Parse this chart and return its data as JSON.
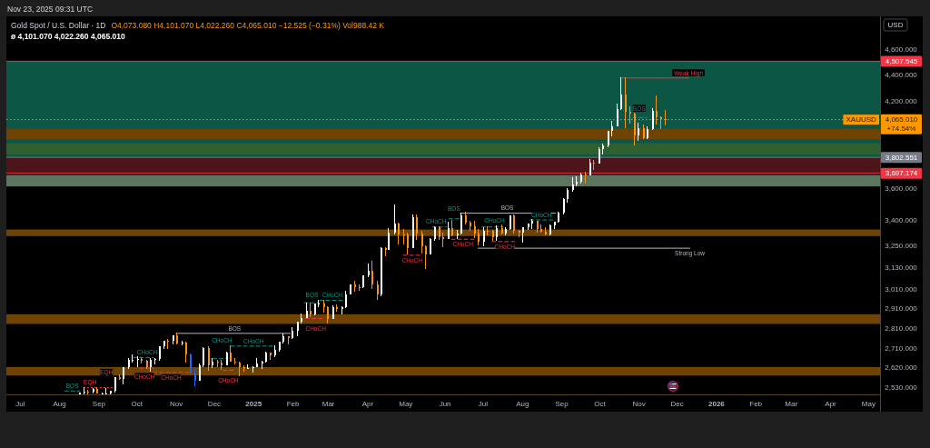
{
  "chart_data": {
    "type": "candlestick",
    "title": "Gold Spot / U.S. Dollar · 1D",
    "subtitle": "O4,073.080 H4,101.070 L4,022.260 C4,065.010 −12.525 (−0.31%) Vol988.42 K",
    "ylabel": "USD",
    "log": true,
    "xlim": [
      "2024-06-20",
      "2026-05-10"
    ],
    "ylim": [
      2500,
      4880
    ],
    "xticks": [
      {
        "value": "2024-07-01",
        "label": "Jul"
      },
      {
        "value": "2024-08-01",
        "label": "Aug"
      },
      {
        "value": "2024-09-01",
        "label": "Sep"
      },
      {
        "value": "2024-10-01",
        "label": "Oct"
      },
      {
        "value": "2024-11-01",
        "label": "Nov"
      },
      {
        "value": "2024-12-01",
        "label": "Dec"
      },
      {
        "value": "2025-01-01",
        "label": "2025"
      },
      {
        "value": "2025-02-01",
        "label": "Feb"
      },
      {
        "value": "2025-03-01",
        "label": "Mar"
      },
      {
        "value": "2025-04-01",
        "label": "Apr"
      },
      {
        "value": "2025-05-01",
        "label": "May"
      },
      {
        "value": "2025-06-01",
        "label": "Jun"
      },
      {
        "value": "2025-07-01",
        "label": "Jul"
      },
      {
        "value": "2025-08-01",
        "label": "Aug"
      },
      {
        "value": "2025-09-01",
        "label": "Sep"
      },
      {
        "value": "2025-10-01",
        "label": "Oct"
      },
      {
        "value": "2025-11-01",
        "label": "Nov"
      },
      {
        "value": "2025-12-01",
        "label": "Dec"
      },
      {
        "value": "2026-01-01",
        "label": "2026"
      },
      {
        "value": "2026-02-01",
        "label": "Feb"
      },
      {
        "value": "2026-03-01",
        "label": "Mar"
      },
      {
        "value": "2026-04-01",
        "label": "Apr"
      },
      {
        "value": "2026-05-01",
        "label": "May"
      }
    ],
    "yticks": [
      {
        "value": 4600,
        "label": "4,600.000"
      },
      {
        "value": 4400,
        "label": "4,400.000"
      },
      {
        "value": 4200,
        "label": "4,200.000"
      },
      {
        "value": 3600,
        "label": "3,600.000"
      },
      {
        "value": 3400,
        "label": "3,400.000"
      },
      {
        "value": 3250,
        "label": "3,250.000"
      },
      {
        "value": 3130,
        "label": "3,130.000"
      },
      {
        "value": 3010,
        "label": "3,010.000"
      },
      {
        "value": 2910,
        "label": "2,910.000"
      },
      {
        "value": 2810,
        "label": "2,810.000"
      },
      {
        "value": 2710,
        "label": "2,710.000"
      },
      {
        "value": 2620,
        "label": "2,620.000"
      },
      {
        "value": 2530,
        "label": "2,530.000"
      }
    ],
    "x": [
      "2024-08-16",
      "2024-08-20",
      "2024-08-23",
      "2024-08-27",
      "2024-08-30",
      "2024-09-03",
      "2024-09-06",
      "2024-09-10",
      "2024-09-13",
      "2024-09-17",
      "2024-09-20",
      "2024-09-24",
      "2024-09-27",
      "2024-10-01",
      "2024-10-04",
      "2024-10-08",
      "2024-10-11",
      "2024-10-15",
      "2024-10-18",
      "2024-10-22",
      "2024-10-25",
      "2024-10-29",
      "2024-11-01",
      "2024-11-05",
      "2024-11-08",
      "2024-11-12",
      "2024-11-15",
      "2024-11-19",
      "2024-11-22",
      "2024-11-26",
      "2024-11-29",
      "2024-12-03",
      "2024-12-06",
      "2024-12-10",
      "2024-12-13",
      "2024-12-17",
      "2024-12-20",
      "2024-12-24",
      "2024-12-27",
      "2024-12-31",
      "2025-01-03",
      "2025-01-07",
      "2025-01-10",
      "2025-01-14",
      "2025-01-17",
      "2025-01-21",
      "2025-01-24",
      "2025-01-28",
      "2025-01-31",
      "2025-02-04",
      "2025-02-07",
      "2025-02-11",
      "2025-02-14",
      "2025-02-18",
      "2025-02-21",
      "2025-02-25",
      "2025-02-28",
      "2025-03-04",
      "2025-03-07",
      "2025-03-11",
      "2025-03-14",
      "2025-03-18",
      "2025-03-21",
      "2025-03-25",
      "2025-03-28",
      "2025-04-01",
      "2025-04-04",
      "2025-04-08",
      "2025-04-11",
      "2025-04-15",
      "2025-04-17",
      "2025-04-22",
      "2025-04-25",
      "2025-04-29",
      "2025-05-02",
      "2025-05-06",
      "2025-05-09",
      "2025-05-13",
      "2025-05-16",
      "2025-05-20",
      "2025-05-23",
      "2025-05-27",
      "2025-05-30",
      "2025-06-03",
      "2025-06-06",
      "2025-06-10",
      "2025-06-13",
      "2025-06-17",
      "2025-06-20",
      "2025-06-24",
      "2025-06-27",
      "2025-07-01",
      "2025-07-04",
      "2025-07-08",
      "2025-07-11",
      "2025-07-15",
      "2025-07-18",
      "2025-07-22",
      "2025-07-25",
      "2025-07-29",
      "2025-08-01",
      "2025-08-05",
      "2025-08-08",
      "2025-08-12",
      "2025-08-15",
      "2025-08-19",
      "2025-08-22",
      "2025-08-26",
      "2025-08-29",
      "2025-09-02",
      "2025-09-05",
      "2025-09-09",
      "2025-09-12",
      "2025-09-16",
      "2025-09-19",
      "2025-09-23",
      "2025-09-26",
      "2025-09-30",
      "2025-10-03",
      "2025-10-07",
      "2025-10-10",
      "2025-10-14",
      "2025-10-17",
      "2025-10-21",
      "2025-10-24",
      "2025-10-28",
      "2025-10-31",
      "2025-11-04",
      "2025-11-07",
      "2025-11-11",
      "2025-11-14",
      "2025-11-18",
      "2025-11-21"
    ],
    "ohlc": [
      [
        2502,
        2509,
        2501,
        2507
      ],
      [
        2507,
        2531,
        2501,
        2513
      ],
      [
        2513,
        2520,
        2502,
        2512
      ],
      [
        2512,
        2528,
        2506,
        2525
      ],
      [
        2525,
        2531,
        2503,
        2503
      ],
      [
        2503,
        2508,
        2501,
        2505
      ],
      [
        2505,
        2529,
        2501,
        2506
      ],
      [
        2506,
        2518,
        2501,
        2516
      ],
      [
        2516,
        2578,
        2510,
        2578
      ],
      [
        2578,
        2590,
        2564,
        2570
      ],
      [
        2570,
        2625,
        2546,
        2622
      ],
      [
        2622,
        2664,
        2614,
        2657
      ],
      [
        2657,
        2685,
        2643,
        2658
      ],
      [
        2658,
        2673,
        2624,
        2662
      ],
      [
        2662,
        2670,
        2640,
        2654
      ],
      [
        2654,
        2658,
        2615,
        2622
      ],
      [
        2622,
        2664,
        2603,
        2657
      ],
      [
        2657,
        2666,
        2638,
        2662
      ],
      [
        2662,
        2722,
        2652,
        2721
      ],
      [
        2721,
        2749,
        2708,
        2748
      ],
      [
        2748,
        2758,
        2708,
        2747
      ],
      [
        2747,
        2774,
        2732,
        2774
      ],
      [
        2774,
        2790,
        2731,
        2736
      ],
      [
        2736,
        2750,
        2726,
        2742
      ],
      [
        2742,
        2746,
        2643,
        2685
      ],
      [
        2685,
        2686,
        2589,
        2598
      ],
      [
        2598,
        2615,
        2537,
        2563
      ],
      [
        2563,
        2639,
        2563,
        2631
      ],
      [
        2631,
        2716,
        2625,
        2712
      ],
      [
        2712,
        2721,
        2605,
        2633
      ],
      [
        2633,
        2665,
        2620,
        2650
      ],
      [
        2650,
        2657,
        2622,
        2643
      ],
      [
        2643,
        2657,
        2613,
        2633
      ],
      [
        2633,
        2695,
        2632,
        2694
      ],
      [
        2694,
        2726,
        2648,
        2648
      ],
      [
        2648,
        2664,
        2637,
        2646
      ],
      [
        2646,
        2650,
        2583,
        2622
      ],
      [
        2622,
        2630,
        2604,
        2618
      ],
      [
        2618,
        2638,
        2616,
        2621
      ],
      [
        2621,
        2626,
        2597,
        2624
      ],
      [
        2624,
        2665,
        2624,
        2640
      ],
      [
        2640,
        2655,
        2614,
        2649
      ],
      [
        2649,
        2697,
        2645,
        2690
      ],
      [
        2690,
        2693,
        2656,
        2677
      ],
      [
        2677,
        2725,
        2670,
        2703
      ],
      [
        2703,
        2746,
        2698,
        2744
      ],
      [
        2744,
        2786,
        2736,
        2770
      ],
      [
        2770,
        2772,
        2730,
        2763
      ],
      [
        2763,
        2817,
        2757,
        2798
      ],
      [
        2798,
        2845,
        2770,
        2842
      ],
      [
        2842,
        2886,
        2834,
        2861
      ],
      [
        2861,
        2942,
        2860,
        2897
      ],
      [
        2897,
        2942,
        2864,
        2882
      ],
      [
        2882,
        2936,
        2877,
        2935
      ],
      [
        2935,
        2955,
        2919,
        2936
      ],
      [
        2936,
        2956,
        2890,
        2915
      ],
      [
        2915,
        2922,
        2832,
        2858
      ],
      [
        2858,
        2928,
        2858,
        2918
      ],
      [
        2918,
        2930,
        2894,
        2910
      ],
      [
        2910,
        2922,
        2880,
        2917
      ],
      [
        2917,
        3005,
        2914,
        2984
      ],
      [
        2984,
        3038,
        2982,
        3035
      ],
      [
        3035,
        3057,
        2999,
        3022
      ],
      [
        3022,
        3036,
        3002,
        3020
      ],
      [
        3020,
        3087,
        3018,
        3085
      ],
      [
        3085,
        3149,
        3076,
        3112
      ],
      [
        3112,
        3167,
        3015,
        3037
      ],
      [
        3037,
        3055,
        2957,
        2982
      ],
      [
        2982,
        3245,
        2975,
        3237
      ],
      [
        3237,
        3245,
        3193,
        3230
      ],
      [
        3230,
        3357,
        3226,
        3327
      ],
      [
        3327,
        3500,
        3317,
        3381
      ],
      [
        3381,
        3387,
        3261,
        3319
      ],
      [
        3319,
        3352,
        3261,
        3317
      ],
      [
        3317,
        3326,
        3202,
        3240
      ],
      [
        3240,
        3437,
        3239,
        3421
      ],
      [
        3421,
        3435,
        3288,
        3325
      ],
      [
        3325,
        3337,
        3208,
        3248
      ],
      [
        3248,
        3252,
        3121,
        3203
      ],
      [
        3203,
        3296,
        3203,
        3289
      ],
      [
        3289,
        3366,
        3282,
        3358
      ],
      [
        3358,
        3365,
        3286,
        3300
      ],
      [
        3300,
        3330,
        3245,
        3289
      ],
      [
        3289,
        3392,
        3289,
        3353
      ],
      [
        3353,
        3403,
        3307,
        3310
      ],
      [
        3310,
        3345,
        3293,
        3323
      ],
      [
        3323,
        3446,
        3319,
        3433
      ],
      [
        3433,
        3452,
        3377,
        3388
      ],
      [
        3388,
        3399,
        3340,
        3368
      ],
      [
        3368,
        3398,
        3295,
        3323
      ],
      [
        3323,
        3350,
        3255,
        3274
      ],
      [
        3274,
        3358,
        3247,
        3338
      ],
      [
        3338,
        3366,
        3311,
        3337
      ],
      [
        3337,
        3342,
        3283,
        3302
      ],
      [
        3302,
        3369,
        3283,
        3355
      ],
      [
        3355,
        3375,
        3320,
        3324
      ],
      [
        3324,
        3361,
        3310,
        3350
      ],
      [
        3350,
        3433,
        3344,
        3431
      ],
      [
        3431,
        3439,
        3325,
        3337
      ],
      [
        3337,
        3345,
        3301,
        3326
      ],
      [
        3326,
        3363,
        3268,
        3362
      ],
      [
        3362,
        3385,
        3346,
        3380
      ],
      [
        3380,
        3409,
        3351,
        3397
      ],
      [
        3397,
        3400,
        3331,
        3348
      ],
      [
        3348,
        3375,
        3330,
        3336
      ],
      [
        3336,
        3358,
        3315,
        3316
      ],
      [
        3316,
        3379,
        3311,
        3371
      ],
      [
        3371,
        3393,
        3352,
        3393
      ],
      [
        3393,
        3453,
        3386,
        3448
      ],
      [
        3448,
        3540,
        3436,
        3533
      ],
      [
        3533,
        3600,
        3511,
        3587
      ],
      [
        3587,
        3674,
        3578,
        3626
      ],
      [
        3626,
        3675,
        3614,
        3643
      ],
      [
        3643,
        3703,
        3631,
        3690
      ],
      [
        3690,
        3707,
        3628,
        3685
      ],
      [
        3685,
        3791,
        3683,
        3764
      ],
      [
        3764,
        3784,
        3717,
        3760
      ],
      [
        3760,
        3872,
        3758,
        3858
      ],
      [
        3858,
        3897,
        3819,
        3886
      ],
      [
        3886,
        3986,
        3874,
        3985
      ],
      [
        3985,
        4059,
        3945,
        4018
      ],
      [
        4018,
        4179,
        4015,
        4142
      ],
      [
        4142,
        4380,
        4138,
        4251
      ],
      [
        4251,
        4381,
        4004,
        4125
      ],
      [
        4125,
        4162,
        4034,
        4112
      ],
      [
        4112,
        4113,
        3886,
        3952
      ],
      [
        3952,
        4046,
        3916,
        4002
      ],
      [
        4002,
        4030,
        3929,
        3932
      ],
      [
        3932,
        4020,
        3930,
        4000
      ],
      [
        4000,
        4149,
        3994,
        4128
      ],
      [
        4128,
        4245,
        4032,
        4084
      ],
      [
        4084,
        4091,
        3998,
        4067
      ],
      [
        4067,
        4132,
        4022,
        4065
      ]
    ],
    "colors": [
      "#ffffff",
      "#ffffff",
      "#f7931a",
      "#ffffff",
      "#f7931a",
      "#ffffff",
      "#ffffff",
      "#ffffff",
      "#ffffff",
      "#f7931a",
      "#ffffff",
      "#ffffff",
      "#ffffff",
      "#ffffff",
      "#f7931a",
      "#f7931a",
      "#ffffff",
      "#ffffff",
      "#ffffff",
      "#ffffff",
      "#f7931a",
      "#ffffff",
      "#f7931a",
      "#ffffff",
      "#f7931a",
      "#2962ff",
      "#2962ff",
      "#ffffff",
      "#ffffff",
      "#f7931a",
      "#ffffff",
      "#f7931a",
      "#f7931a",
      "#ffffff",
      "#f7931a",
      "#f7931a",
      "#f7931a",
      "#f7931a",
      "#ffffff",
      "#ffffff",
      "#ffffff",
      "#ffffff",
      "#ffffff",
      "#f7931a",
      "#ffffff",
      "#ffffff",
      "#ffffff",
      "#f7931a",
      "#ffffff",
      "#ffffff",
      "#ffffff",
      "#ffffff",
      "#f7931a",
      "#ffffff",
      "#ffffff",
      "#f7931a",
      "#f7931a",
      "#ffffff",
      "#f7931a",
      "#ffffff",
      "#ffffff",
      "#ffffff",
      "#f7931a",
      "#f7931a",
      "#ffffff",
      "#ffffff",
      "#f7931a",
      "#f7931a",
      "#ffffff",
      "#f7931a",
      "#ffffff",
      "#ffffff",
      "#f7931a",
      "#f7931a",
      "#f7931a",
      "#ffffff",
      "#f7931a",
      "#f7931a",
      "#f7931a",
      "#ffffff",
      "#ffffff",
      "#f7931a",
      "#f7931a",
      "#ffffff",
      "#f7931a",
      "#ffffff",
      "#ffffff",
      "#f7931a",
      "#f7931a",
      "#f7931a",
      "#f7931a",
      "#ffffff",
      "#f7931a",
      "#f7931a",
      "#ffffff",
      "#f7931a",
      "#ffffff",
      "#ffffff",
      "#f7931a",
      "#f7931a",
      "#ffffff",
      "#ffffff",
      "#ffffff",
      "#f7931a",
      "#f7931a",
      "#f7931a",
      "#ffffff",
      "#ffffff",
      "#ffffff",
      "#ffffff",
      "#ffffff",
      "#ffffff",
      "#ffffff",
      "#ffffff",
      "#f7931a",
      "#ffffff",
      "#f7931a",
      "#ffffff",
      "#ffffff",
      "#ffffff",
      "#ffffff",
      "#ffffff",
      "#ffffff",
      "#f7931a",
      "#f7931a",
      "#f7931a",
      "#ffffff",
      "#f7931a",
      "#ffffff",
      "#ffffff",
      "#f7931a",
      "#f7931a",
      "#f7931a"
    ],
    "series": [
      {
        "type": "line",
        "x": [
          "2024-11-01",
          "2025-01-30"
        ],
        "values": [
          2785,
          2785
        ],
        "color": "#b2b5be"
      },
      {
        "type": "line",
        "x": [
          "2024-09-28",
          "2024-10-14"
        ],
        "values": [
          2669,
          2669
        ],
        "color": "#089981",
        "line_style": "dashed"
      },
      {
        "type": "line",
        "x": [
          "2024-10-03",
          "2024-10-14"
        ],
        "values": [
          2619,
          2619
        ],
        "color": "#f23645",
        "line_style": "dashed"
      },
      {
        "type": "line",
        "x": [
          "2024-10-14",
          "2024-11-12"
        ],
        "values": [
          2599,
          2599
        ],
        "color": "#f23645",
        "line_style": "dashed"
      },
      {
        "type": "line",
        "x": [
          "2024-11-30",
          "2024-12-11"
        ],
        "values": [
          2663,
          2663
        ],
        "color": "#089981",
        "line_style": "dashed"
      },
      {
        "type": "line",
        "x": [
          "2024-12-14",
          "2025-01-18"
        ],
        "values": [
          2723,
          2723
        ],
        "color": "#089981",
        "line_style": "dashed"
      },
      {
        "type": "line",
        "x": [
          "2024-12-08",
          "2024-12-17"
        ],
        "values": [
          2609,
          2609
        ],
        "color": "#f23645",
        "line_style": "dashed"
      },
      {
        "type": "line",
        "x": [
          "2024-08-20",
          "2024-08-30"
        ],
        "values": [
          2530,
          2530
        ],
        "color": "#f23645",
        "line_style": "dotted"
      },
      {
        "type": "line",
        "x": [
          "2024-09-02",
          "2024-09-12"
        ],
        "values": [
          2530,
          2530
        ],
        "color": "#f23645",
        "line_style": "dotted"
      },
      {
        "type": "line",
        "x": [
          "2024-08-05",
          "2024-08-17"
        ],
        "values": [
          2515,
          2515
        ],
        "color": "#089981",
        "line_style": "dashed"
      },
      {
        "type": "line",
        "x": [
          "2025-02-10",
          "2025-02-22"
        ],
        "values": [
          2940,
          2940
        ],
        "color": "#089981",
        "line_style": "dashed"
      },
      {
        "type": "line",
        "x": [
          "2025-02-22",
          "2025-03-12"
        ],
        "values": [
          2953,
          2953
        ],
        "color": "#089981",
        "line_style": "dashed"
      },
      {
        "type": "line",
        "x": [
          "2025-02-11",
          "2025-02-26"
        ],
        "values": [
          2859,
          2859
        ],
        "color": "#f23645",
        "line_style": "dashed"
      },
      {
        "type": "line",
        "x": [
          "2025-06-13",
          "2025-08-27"
        ],
        "values": [
          3445,
          3445
        ],
        "color": "#b2b5be"
      },
      {
        "type": "line",
        "x": [
          "2025-06-04",
          "2025-06-13"
        ],
        "values": [
          3411,
          3411
        ],
        "color": "#089981",
        "line_style": "dashed"
      },
      {
        "type": "line",
        "x": [
          "2025-05-22",
          "2025-06-02"
        ],
        "values": [
          3362,
          3362
        ],
        "color": "#089981",
        "line_style": "dashed"
      },
      {
        "type": "line",
        "x": [
          "2025-06-30",
          "2025-07-17"
        ],
        "values": [
          3362,
          3362
        ],
        "color": "#089981",
        "line_style": "dashed"
      },
      {
        "type": "line",
        "x": [
          "2025-08-07",
          "2025-08-25"
        ],
        "values": [
          3404,
          3404
        ],
        "color": "#089981",
        "line_style": "dashed"
      },
      {
        "type": "line",
        "x": [
          "2025-04-29",
          "2025-05-12"
        ],
        "values": [
          3198,
          3198
        ],
        "color": "#f23645",
        "line_style": "dashed"
      },
      {
        "type": "line",
        "x": [
          "2025-06-06",
          "2025-06-24"
        ],
        "values": [
          3290,
          3290
        ],
        "color": "#f23645",
        "line_style": "dashed"
      },
      {
        "type": "line",
        "x": [
          "2025-07-08",
          "2025-07-28"
        ],
        "values": [
          3276,
          3276
        ],
        "color": "#f23645",
        "line_style": "dashed"
      },
      {
        "type": "line",
        "x": [
          "2025-06-27",
          "2025-12-11"
        ],
        "values": [
          3238,
          3238
        ],
        "color": "#b2b5be"
      },
      {
        "type": "line",
        "x": [
          "2025-10-27",
          "2025-11-07"
        ],
        "values": [
          4080,
          4080
        ],
        "color": "#089981",
        "line_style": "dashed"
      },
      {
        "type": "line",
        "x": [
          "2025-10-18",
          "2025-12-10"
        ],
        "values": [
          4376,
          4376
        ],
        "color": "#f23645"
      }
    ],
    "bands": [
      {
        "axis": "y",
        "from": 3802.551,
        "to": 4507.545,
        "color": "#0c5646"
      },
      {
        "axis": "y",
        "from": 3697.174,
        "to": 3802.551,
        "color": "#4d1519"
      },
      {
        "axis": "y",
        "from": 3925,
        "to": 4000,
        "color": "#6f4303"
      },
      {
        "axis": "y",
        "from": 3820,
        "to": 3900,
        "color": "#2d5f2f"
      },
      {
        "axis": "y",
        "from": 3612,
        "to": 3686,
        "color": "#5d7460"
      },
      {
        "axis": "y",
        "from": 3308,
        "to": 3347,
        "color": "#6f4303"
      },
      {
        "axis": "y",
        "from": 2832,
        "to": 2881,
        "color": "#6f4303"
      },
      {
        "axis": "y",
        "from": 2585,
        "to": 2624,
        "color": "#6f4303"
      }
    ],
    "ref_lines": [
      {
        "axis": "y",
        "value": 4507.545,
        "label": "4,507.545",
        "color": "#f23645"
      },
      {
        "axis": "y",
        "value": 4065.01,
        "label": "4,065.010\n+74.54%",
        "color": "#ff9800",
        "line_style": "dotted"
      },
      {
        "axis": "y",
        "value": 3802.551,
        "label": "3,802.551",
        "color": "#787b86"
      },
      {
        "axis": "y",
        "value": 3697.174,
        "label": "3,697.174",
        "color": "#f23645"
      }
    ],
    "annotations": [
      "Nov 23, 2025 09:31 UTC",
      "ø 4,101.070 4,022.260 4,065.010",
      {
        "text": "XAUUSD",
        "y": 4065.01
      },
      {
        "text": "BOS",
        "x": "2024-12-17",
        "y": 2785
      },
      {
        "text": "CHoCH",
        "x": "2024-10-09",
        "y": 2669
      },
      {
        "text": "CHoCH",
        "x": "2024-10-07",
        "y": 2619
      },
      {
        "text": "CHoCH",
        "x": "2024-10-28",
        "y": 2599
      },
      {
        "text": "CHoCH",
        "x": "2024-12-07",
        "y": 2663
      },
      {
        "text": "CHoCH",
        "x": "2025-01-01",
        "y": 2723
      },
      {
        "text": "CHoCH",
        "x": "2024-12-12",
        "y": 2609
      },
      {
        "text": "EQH",
        "x": "2024-08-25",
        "y": 2530
      },
      {
        "text": "EQH",
        "x": "2024-09-07",
        "y": 2530
      },
      {
        "text": "BOS",
        "x": "2024-08-11",
        "y": 2515
      },
      {
        "text": "BOS",
        "x": "2025-02-16",
        "y": 2940
      },
      {
        "text": "CHoCH",
        "x": "2025-03-04",
        "y": 2953
      },
      {
        "text": "CHoCH",
        "x": "2025-02-19",
        "y": 2859
      },
      {
        "text": "BOS",
        "x": "2025-07-20",
        "y": 3445
      },
      {
        "text": "BOS",
        "x": "2025-06-08",
        "y": 3411
      },
      {
        "text": "CHoCH",
        "x": "2025-05-25",
        "y": 3362
      },
      {
        "text": "CHoCH",
        "x": "2025-07-10",
        "y": 3362
      },
      {
        "text": "CHoCH",
        "x": "2025-08-16",
        "y": 3404
      },
      {
        "text": "CHoCH",
        "x": "2025-05-06",
        "y": 3198
      },
      {
        "text": "CHoCH",
        "x": "2025-06-15",
        "y": 3290
      },
      {
        "text": "CHoCH",
        "x": "2025-07-18",
        "y": 3276
      },
      {
        "text": "Strong Low",
        "x": "2025-12-11",
        "y": 3238
      },
      {
        "text": "BOS",
        "x": "2025-11-01",
        "y": 4080
      },
      {
        "text": "Weak High",
        "x": "2025-12-10",
        "y": 4376
      }
    ]
  }
}
